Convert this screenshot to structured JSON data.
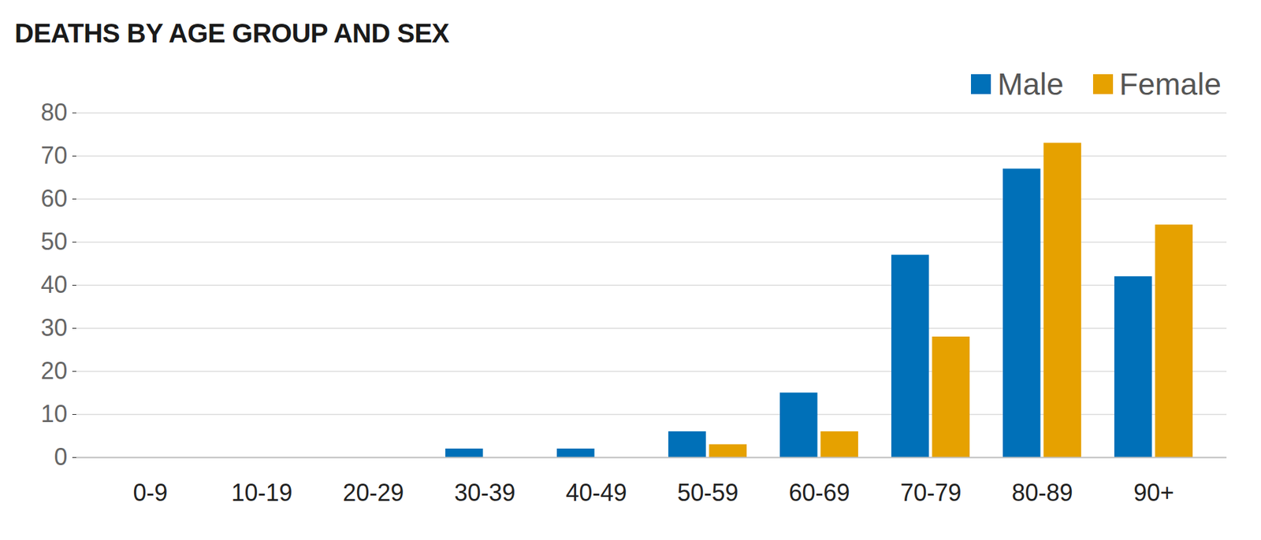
{
  "chart_data": {
    "type": "bar",
    "title": "DEATHS BY AGE GROUP AND SEX",
    "categories": [
      "0-9",
      "10-19",
      "20-29",
      "30-39",
      "40-49",
      "50-59",
      "60-69",
      "70-79",
      "80-89",
      "90+"
    ],
    "series": [
      {
        "name": "Male",
        "color": "#0070b8",
        "values": [
          0,
          0,
          0,
          2,
          2,
          6,
          15,
          47,
          67,
          42
        ]
      },
      {
        "name": "Female",
        "color": "#e6a100",
        "values": [
          0,
          0,
          0,
          0,
          0,
          3,
          6,
          28,
          73,
          54
        ]
      }
    ],
    "ylim": [
      0,
      80
    ],
    "yticks": [
      0,
      10,
      20,
      30,
      40,
      50,
      60,
      70,
      80
    ],
    "grid": true,
    "legend": "top-right"
  }
}
